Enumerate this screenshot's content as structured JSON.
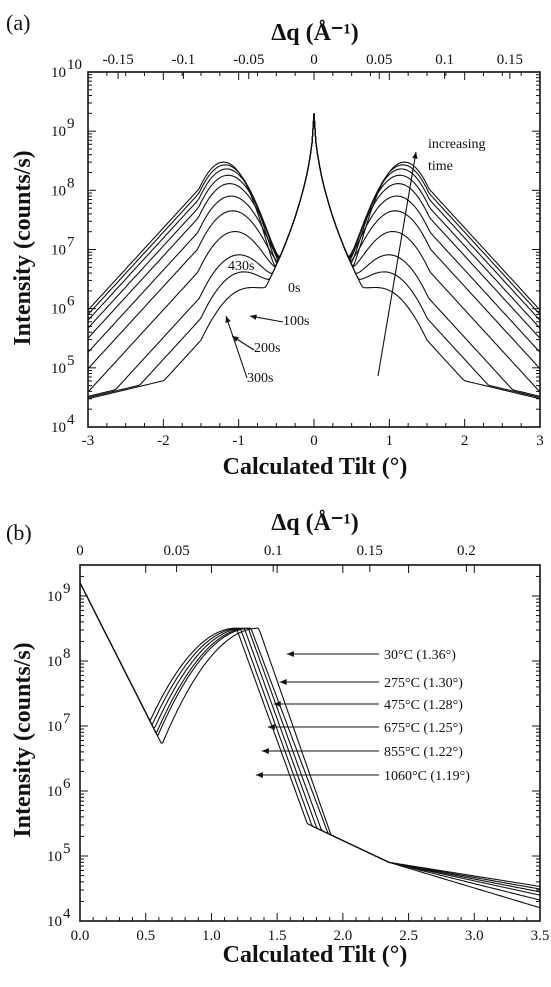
{
  "chart_data": [
    {
      "panel_label": "(a)",
      "type": "line",
      "xlabel": "Calculated Tilt (°)",
      "ylabel": "Intensity (counts/s)",
      "top_xlabel": "Δq (Å⁻¹)",
      "xlim": [
        -3,
        3
      ],
      "ylim": [
        10000,
        10000000000
      ],
      "yscale": "log",
      "x_ticks": [
        "-3",
        "-2",
        "-1",
        "0",
        "1",
        "2",
        "3"
      ],
      "top_ticks": [
        "-0.15",
        "-0.1",
        "-0.05",
        "0",
        "0.05",
        "0.1",
        "0.15"
      ],
      "y_ticks": [
        {
          "base": "10",
          "exp": "4"
        },
        {
          "base": "10",
          "exp": "5"
        },
        {
          "base": "10",
          "exp": "6"
        },
        {
          "base": "10",
          "exp": "7"
        },
        {
          "base": "10",
          "exp": "8"
        },
        {
          "base": "10",
          "exp": "9"
        },
        {
          "base": "10",
          "exp": "10"
        }
      ],
      "annotations": [
        "increasing time",
        "430s",
        "0s",
        "100s",
        "200s",
        "300s"
      ],
      "series": [
        {
          "peak_position": 0.9,
          "peak_value": 2000000,
          "values": {
            "x": [
              -3,
              -2,
              -1.5,
              -1,
              -0.5,
              -0.2,
              0,
              0.2,
              0.5,
              1,
              1.5,
              2,
              3
            ],
            "y": [
              30000,
              80000,
              300000,
              1500000,
              3000000,
              30000000,
              2000000000,
              30000000,
              3000000,
              1500000,
              300000,
              80000,
              30000
            ]
          }
        },
        {
          "peak_position": 0.95,
          "peak_value": 4000000
        },
        {
          "peak_position": 1.0,
          "peak_value": 8000000
        },
        {
          "peak_position": 1.05,
          "peak_value": 20000000
        },
        {
          "peak_position": 1.08,
          "peak_value": 45000000
        },
        {
          "peak_position": 1.1,
          "peak_value": 80000000
        },
        {
          "peak_position": 1.12,
          "peak_value": 130000000
        },
        {
          "peak_position": 1.14,
          "peak_value": 180000000
        },
        {
          "peak_position": 1.16,
          "peak_value": 230000000
        },
        {
          "peak_position": 1.18,
          "peak_value": 270000000
        },
        {
          "peak_position": 1.2,
          "peak_value": 300000000
        }
      ],
      "central_peak": 2000000000
    },
    {
      "panel_label": "(b)",
      "type": "line",
      "xlabel": "Calculated Tilt (°)",
      "ylabel": "Intensity (counts/s)",
      "top_xlabel": "Δq (Å⁻¹)",
      "xlim": [
        0,
        3.5
      ],
      "ylim": [
        10000,
        3000000000
      ],
      "yscale": "log",
      "x_ticks": [
        "0.0",
        "0.5",
        "1.0",
        "1.5",
        "2.0",
        "2.5",
        "3.0",
        "3.5"
      ],
      "top_ticks": [
        "0",
        "0.05",
        "0.1",
        "0.15",
        "0.2"
      ],
      "y_ticks": [
        {
          "base": "10",
          "exp": "4"
        },
        {
          "base": "10",
          "exp": "5"
        },
        {
          "base": "10",
          "exp": "6"
        },
        {
          "base": "10",
          "exp": "7"
        },
        {
          "base": "10",
          "exp": "8"
        },
        {
          "base": "10",
          "exp": "9"
        }
      ],
      "legend": [
        "30°C  (1.36°)",
        "275°C  (1.30°)",
        "475°C  (1.28°)",
        "675°C  (1.25°)",
        "855°C  (1.22°)",
        "1060°C  (1.19°)"
      ],
      "series": [
        {
          "name": "30°C",
          "peak_position": 1.36,
          "x_at_1e7": 1.62,
          "y_at_3_5": 34000
        },
        {
          "name": "275°C",
          "peak_position": 1.3,
          "x_at_1e7": 1.58,
          "y_at_3_5": 31000
        },
        {
          "name": "475°C",
          "peak_position": 1.28,
          "x_at_1e7": 1.55,
          "y_at_3_5": 28000
        },
        {
          "name": "675°C",
          "peak_position": 1.25,
          "x_at_1e7": 1.52,
          "y_at_3_5": 25000
        },
        {
          "name": "855°C",
          "peak_position": 1.22,
          "x_at_1e7": 1.49,
          "y_at_3_5": 21000
        },
        {
          "name": "1060°C",
          "peak_position": 1.19,
          "x_at_1e7": 1.46,
          "y_at_3_5": 16000
        }
      ]
    }
  ]
}
